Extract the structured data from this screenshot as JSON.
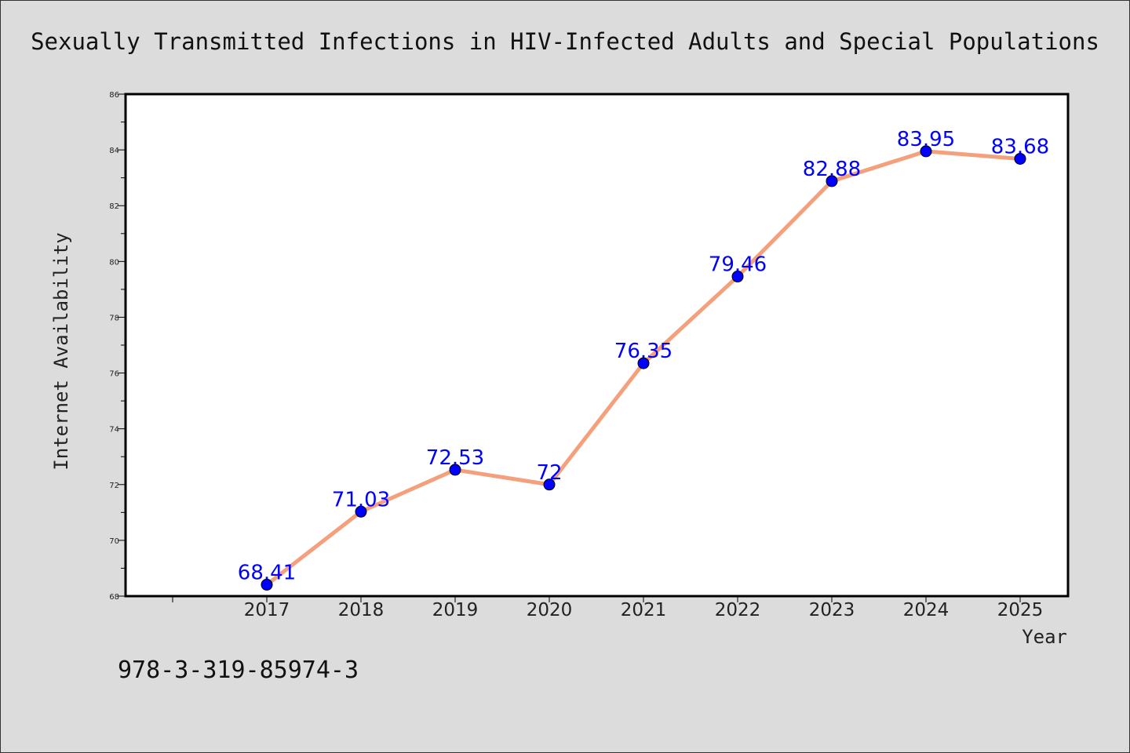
{
  "chart_data": {
    "type": "line",
    "title": "Sexually Transmitted Infections in HIV-Infected Adults and Special Populations",
    "xlabel": "Year",
    "ylabel": "Internet Availability",
    "categories": [
      "2017",
      "2018",
      "2019",
      "2020",
      "2021",
      "2022",
      "2023",
      "2024",
      "2025"
    ],
    "series": [
      {
        "values": [
          68.41,
          71.03,
          72.53,
          72,
          76.35,
          79.46,
          82.88,
          83.95,
          83.68
        ],
        "labels": [
          "68.41",
          "71.03",
          "72.53",
          "72",
          "76.35",
          "79.46",
          "82.88",
          "83.95",
          "83.68"
        ]
      }
    ],
    "ylim": [
      68,
      86
    ],
    "yticks": [
      "68",
      "70",
      "72",
      "74",
      "76",
      "78",
      "80",
      "82",
      "84",
      "86"
    ],
    "grid": false,
    "legend": "none",
    "colors": {
      "line": "#f4a07c",
      "marker": "#0000ff",
      "label": "#0000ff",
      "background": "#dcdcdc",
      "plot_background": "#ffffff"
    }
  },
  "footnote": "978-3-319-85974-3"
}
